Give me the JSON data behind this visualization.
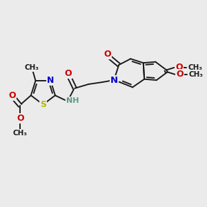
{
  "bg_color": "#ebebeb",
  "bond_color": "#1a1a1a",
  "bond_width": 1.4,
  "figsize": [
    3.0,
    3.0
  ],
  "dpi": 100,
  "xlim": [
    0,
    10
  ],
  "ylim": [
    0,
    10
  ]
}
